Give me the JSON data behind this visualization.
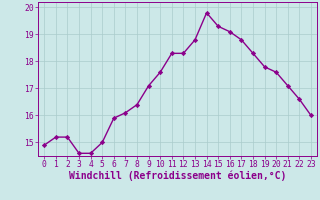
{
  "x": [
    0,
    1,
    2,
    3,
    4,
    5,
    6,
    7,
    8,
    9,
    10,
    11,
    12,
    13,
    14,
    15,
    16,
    17,
    18,
    19,
    20,
    21,
    22,
    23
  ],
  "y": [
    14.9,
    15.2,
    15.2,
    14.6,
    14.6,
    15.0,
    15.9,
    16.1,
    16.4,
    17.1,
    17.6,
    18.3,
    18.3,
    18.8,
    19.8,
    19.3,
    19.1,
    18.8,
    18.3,
    17.8,
    17.6,
    17.1,
    16.6,
    16.0
  ],
  "line_color": "#8B008B",
  "marker": "D",
  "marker_size": 2.2,
  "bg_color": "#cce8e8",
  "grid_color": "#aacccc",
  "xlabel": "Windchill (Refroidissement éolien,°C)",
  "ylim": [
    14.5,
    20.2
  ],
  "yticks": [
    15,
    16,
    17,
    18,
    19,
    20
  ],
  "xticks": [
    0,
    1,
    2,
    3,
    4,
    5,
    6,
    7,
    8,
    9,
    10,
    11,
    12,
    13,
    14,
    15,
    16,
    17,
    18,
    19,
    20,
    21,
    22,
    23
  ],
  "font_color": "#8B008B",
  "tick_label_fontsize": 5.8,
  "xlabel_fontsize": 7.0,
  "line_width": 1.0
}
